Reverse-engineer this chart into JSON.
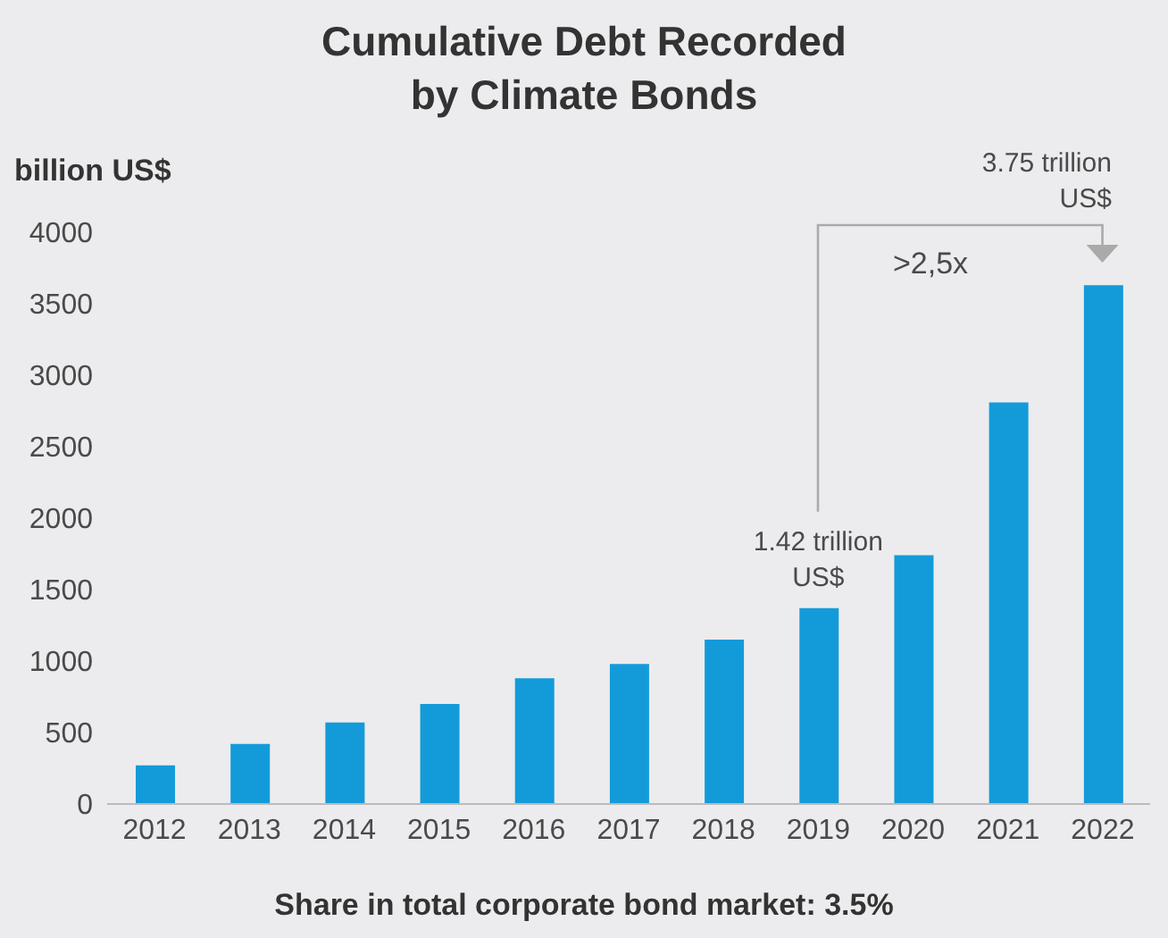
{
  "chart_data": {
    "type": "bar",
    "title": "Cumulative Debt Recorded by Climate Bonds",
    "ylabel": "billion US$",
    "categories": [
      "2012",
      "2013",
      "2014",
      "2015",
      "2016",
      "2017",
      "2018",
      "2019",
      "2020",
      "2021",
      "2022"
    ],
    "values": [
      270,
      420,
      570,
      700,
      880,
      980,
      1150,
      1370,
      1740,
      2810,
      3630
    ],
    "color": "#139bd9",
    "ylim": [
      0,
      4000
    ],
    "yticks": [
      0,
      500,
      1000,
      1500,
      2000,
      2500,
      3000,
      3500,
      4000
    ],
    "grid": false,
    "legend": false,
    "annotations": [
      "Share in total corporate bond market: 3.5%",
      {
        "text": "1.42 trillion US$",
        "x": "2019",
        "y": 1420
      },
      ">2,5x",
      "3.75 trillion US$"
    ]
  }
}
